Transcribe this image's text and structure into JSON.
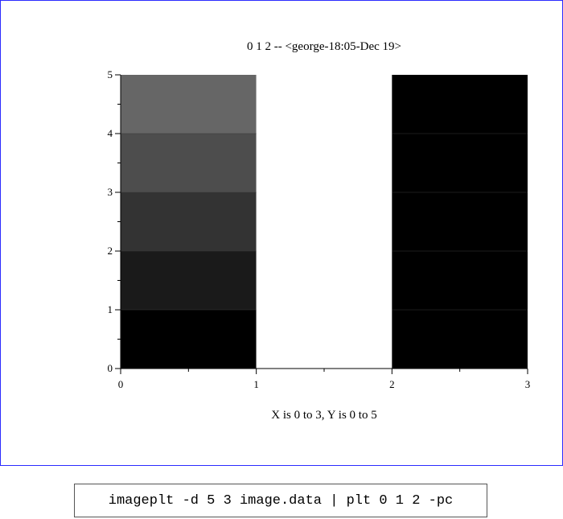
{
  "chart_data": {
    "type": "heatmap",
    "title": "0 1 2 -- <george-18:05-Dec 19>",
    "xlabel": "X is 0 to 3,  Y is 0 to 5",
    "ylabel": "",
    "xlim": [
      0,
      3
    ],
    "ylim": [
      0,
      5
    ],
    "x_ticks": [
      "0",
      "1",
      "2",
      "3"
    ],
    "y_ticks": [
      "0",
      "1",
      "2",
      "3",
      "4",
      "5"
    ],
    "grid": false,
    "columns": 3,
    "rows": 5,
    "cells": [
      {
        "x": [
          0,
          1
        ],
        "y": [
          0,
          1
        ],
        "color": "#000000"
      },
      {
        "x": [
          0,
          1
        ],
        "y": [
          1,
          2
        ],
        "color": "#1a1a1a"
      },
      {
        "x": [
          0,
          1
        ],
        "y": [
          2,
          3
        ],
        "color": "#333333"
      },
      {
        "x": [
          0,
          1
        ],
        "y": [
          3,
          4
        ],
        "color": "#4d4d4d"
      },
      {
        "x": [
          0,
          1
        ],
        "y": [
          4,
          5
        ],
        "color": "#666666"
      },
      {
        "x": [
          1,
          2
        ],
        "y": [
          0,
          1
        ],
        "color": "#ffffff"
      },
      {
        "x": [
          1,
          2
        ],
        "y": [
          1,
          2
        ],
        "color": "#ffffff"
      },
      {
        "x": [
          1,
          2
        ],
        "y": [
          2,
          3
        ],
        "color": "#ffffff"
      },
      {
        "x": [
          1,
          2
        ],
        "y": [
          3,
          4
        ],
        "color": "#ffffff"
      },
      {
        "x": [
          1,
          2
        ],
        "y": [
          4,
          5
        ],
        "color": "#ffffff"
      },
      {
        "x": [
          2,
          3
        ],
        "y": [
          0,
          1
        ],
        "color": "#000000"
      },
      {
        "x": [
          2,
          3
        ],
        "y": [
          1,
          2
        ],
        "color": "#000000"
      },
      {
        "x": [
          2,
          3
        ],
        "y": [
          2,
          3
        ],
        "color": "#000000"
      },
      {
        "x": [
          2,
          3
        ],
        "y": [
          3,
          4
        ],
        "color": "#000000"
      },
      {
        "x": [
          2,
          3
        ],
        "y": [
          4,
          5
        ],
        "color": "#000000"
      }
    ]
  },
  "command": "imageplt -d 5 3 image.data | plt 0 1 2 -pc"
}
